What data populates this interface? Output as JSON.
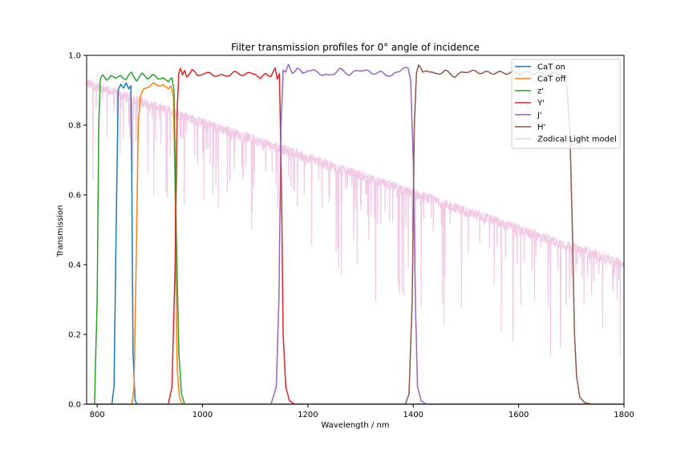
{
  "chart_data": {
    "type": "line",
    "title": "Filter transmission profiles for 0° angle of incidence",
    "xlabel": "Wavelength / nm",
    "ylabel": "Transmission",
    "xlim": [
      780,
      1800
    ],
    "ylim": [
      0.0,
      1.0
    ],
    "xticks": [
      800,
      1000,
      1200,
      1400,
      1600,
      1800
    ],
    "xtick_labels": [
      "800",
      "1000",
      "1200",
      "1400",
      "1600",
      "1800"
    ],
    "yticks": [
      0.0,
      0.2,
      0.4,
      0.6,
      0.8,
      1.0
    ],
    "ytick_labels": [
      "0.0",
      "0.2",
      "0.4",
      "0.6",
      "0.8",
      "1.0"
    ],
    "grid": false,
    "legend_placement": "top-right",
    "series": [
      {
        "name": "CaT on",
        "color": "#1f77b4",
        "kind": "filter",
        "x": [
          780,
          828,
          832,
          836,
          840,
          845,
          850,
          855,
          860,
          864,
          866,
          868,
          872,
          876,
          900
        ],
        "y": [
          0.0,
          0.0,
          0.05,
          0.5,
          0.9,
          0.92,
          0.91,
          0.92,
          0.9,
          0.91,
          0.6,
          0.15,
          0.01,
          0.0,
          0.0
        ]
      },
      {
        "name": "CaT off",
        "color": "#ff7f0e",
        "kind": "filter",
        "x": [
          780,
          866,
          870,
          874,
          878,
          882,
          888,
          895,
          905,
          915,
          925,
          935,
          940,
          945,
          948,
          950,
          952,
          956,
          962,
          980
        ],
        "y": [
          0.0,
          0.0,
          0.05,
          0.4,
          0.8,
          0.88,
          0.9,
          0.91,
          0.92,
          0.91,
          0.92,
          0.9,
          0.91,
          0.88,
          0.6,
          0.3,
          0.1,
          0.02,
          0.0,
          0.0
        ]
      },
      {
        "name": "z'",
        "color": "#2ca02c",
        "kind": "filter",
        "x": [
          780,
          795,
          800,
          803,
          806,
          810,
          818,
          826,
          835,
          845,
          855,
          865,
          875,
          885,
          895,
          905,
          915,
          925,
          935,
          942,
          946,
          950,
          955,
          960,
          966,
          980
        ],
        "y": [
          0.0,
          0.0,
          0.3,
          0.8,
          0.93,
          0.94,
          0.93,
          0.945,
          0.93,
          0.945,
          0.93,
          0.95,
          0.93,
          0.945,
          0.935,
          0.945,
          0.93,
          0.94,
          0.92,
          0.935,
          0.9,
          0.5,
          0.15,
          0.03,
          0.0,
          0.0
        ]
      },
      {
        "name": "Y'",
        "color": "#d62728",
        "kind": "filter",
        "x": [
          780,
          935,
          942,
          948,
          952,
          955,
          958,
          962,
          966,
          970,
          980,
          990,
          1000,
          1020,
          1040,
          1060,
          1080,
          1100,
          1110,
          1120,
          1130,
          1138,
          1142,
          1146,
          1150,
          1153,
          1158,
          1165,
          1175,
          1200
        ],
        "y": [
          0.0,
          0.0,
          0.05,
          0.4,
          0.85,
          0.95,
          0.96,
          0.94,
          0.955,
          0.94,
          0.96,
          0.94,
          0.95,
          0.945,
          0.94,
          0.95,
          0.945,
          0.95,
          0.93,
          0.95,
          0.94,
          0.96,
          0.93,
          0.95,
          0.6,
          0.2,
          0.05,
          0.01,
          0.0,
          0.0
        ]
      },
      {
        "name": "J'",
        "color": "#9467bd",
        "kind": "filter",
        "x": [
          780,
          1130,
          1140,
          1145,
          1149,
          1153,
          1158,
          1163,
          1170,
          1180,
          1190,
          1200,
          1220,
          1240,
          1260,
          1280,
          1300,
          1320,
          1340,
          1360,
          1380,
          1390,
          1395,
          1400,
          1404,
          1408,
          1415,
          1425,
          1450
        ],
        "y": [
          0.0,
          0.0,
          0.05,
          0.3,
          0.8,
          0.96,
          0.95,
          0.97,
          0.95,
          0.965,
          0.945,
          0.96,
          0.95,
          0.94,
          0.96,
          0.945,
          0.96,
          0.95,
          0.95,
          0.94,
          0.965,
          0.96,
          0.93,
          0.7,
          0.3,
          0.05,
          0.01,
          0.0,
          0.0
        ]
      },
      {
        "name": "H'",
        "color": "#8c564b",
        "kind": "filter",
        "x": [
          780,
          1385,
          1392,
          1398,
          1402,
          1406,
          1410,
          1418,
          1425,
          1440,
          1460,
          1480,
          1500,
          1540,
          1580,
          1620,
          1660,
          1680,
          1690,
          1697,
          1702,
          1706,
          1710,
          1716,
          1725,
          1740,
          1800
        ],
        "y": [
          0.0,
          0.0,
          0.03,
          0.3,
          0.8,
          0.95,
          0.97,
          0.95,
          0.96,
          0.945,
          0.955,
          0.94,
          0.955,
          0.95,
          0.95,
          0.95,
          0.945,
          0.95,
          0.93,
          0.8,
          0.5,
          0.2,
          0.08,
          0.02,
          0.005,
          0.0,
          0.0
        ]
      },
      {
        "name": "Zodical Light model",
        "color": "#f0c8e4",
        "kind": "zodiacal",
        "x": [
          780,
          1800
        ],
        "y": [
          0.92,
          0.4
        ]
      }
    ]
  }
}
